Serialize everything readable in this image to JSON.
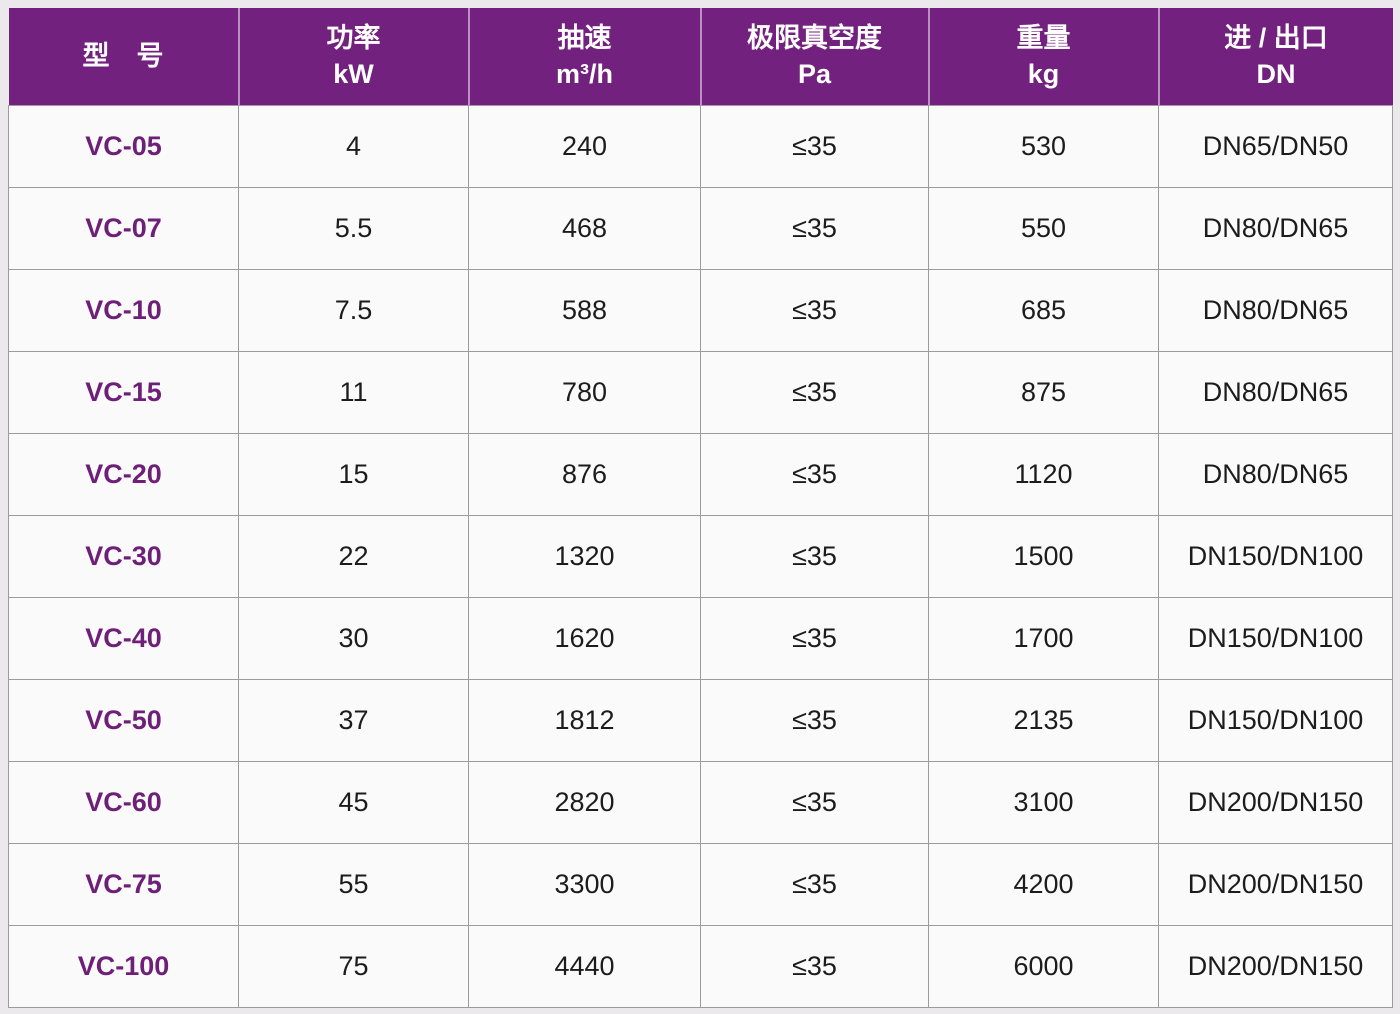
{
  "colors": {
    "header_bg": "#72217E",
    "header_text": "#ffffff",
    "model_text": "#6E1F78",
    "body_text": "#1c1c1c",
    "grid_line": "#9c9c9c",
    "cell_bg": "#fbfafb",
    "page_bg": "#ebe9eb"
  },
  "chart_data": {
    "type": "table",
    "title": "",
    "columns": [
      {
        "id": "model",
        "line1": "型　号",
        "line2": ""
      },
      {
        "id": "power",
        "line1": "功率",
        "line2": "kW"
      },
      {
        "id": "speed",
        "line1": "抽速",
        "line2": "m³/h"
      },
      {
        "id": "vacuum",
        "line1": "极限真空度",
        "line2": "Pa"
      },
      {
        "id": "weight",
        "line1": "重量",
        "line2": "kg"
      },
      {
        "id": "port",
        "line1": "进 / 出口",
        "line2": "DN"
      }
    ],
    "rows": [
      {
        "model": "VC-05",
        "power": "4",
        "speed": "240",
        "vacuum": "≤35",
        "weight": "530",
        "port": "DN65/DN50"
      },
      {
        "model": "VC-07",
        "power": "5.5",
        "speed": "468",
        "vacuum": "≤35",
        "weight": "550",
        "port": "DN80/DN65"
      },
      {
        "model": "VC-10",
        "power": "7.5",
        "speed": "588",
        "vacuum": "≤35",
        "weight": "685",
        "port": "DN80/DN65"
      },
      {
        "model": "VC-15",
        "power": "11",
        "speed": "780",
        "vacuum": "≤35",
        "weight": "875",
        "port": "DN80/DN65"
      },
      {
        "model": "VC-20",
        "power": "15",
        "speed": "876",
        "vacuum": "≤35",
        "weight": "1120",
        "port": "DN80/DN65"
      },
      {
        "model": "VC-30",
        "power": "22",
        "speed": "1320",
        "vacuum": "≤35",
        "weight": "1500",
        "port": "DN150/DN100"
      },
      {
        "model": "VC-40",
        "power": "30",
        "speed": "1620",
        "vacuum": "≤35",
        "weight": "1700",
        "port": "DN150/DN100"
      },
      {
        "model": "VC-50",
        "power": "37",
        "speed": "1812",
        "vacuum": "≤35",
        "weight": "2135",
        "port": "DN150/DN100"
      },
      {
        "model": "VC-60",
        "power": "45",
        "speed": "2820",
        "vacuum": "≤35",
        "weight": "3100",
        "port": "DN200/DN150"
      },
      {
        "model": "VC-75",
        "power": "55",
        "speed": "3300",
        "vacuum": "≤35",
        "weight": "4200",
        "port": "DN200/DN150"
      },
      {
        "model": "VC-100",
        "power": "75",
        "speed": "4440",
        "vacuum": "≤35",
        "weight": "6000",
        "port": "DN200/DN150"
      }
    ]
  }
}
